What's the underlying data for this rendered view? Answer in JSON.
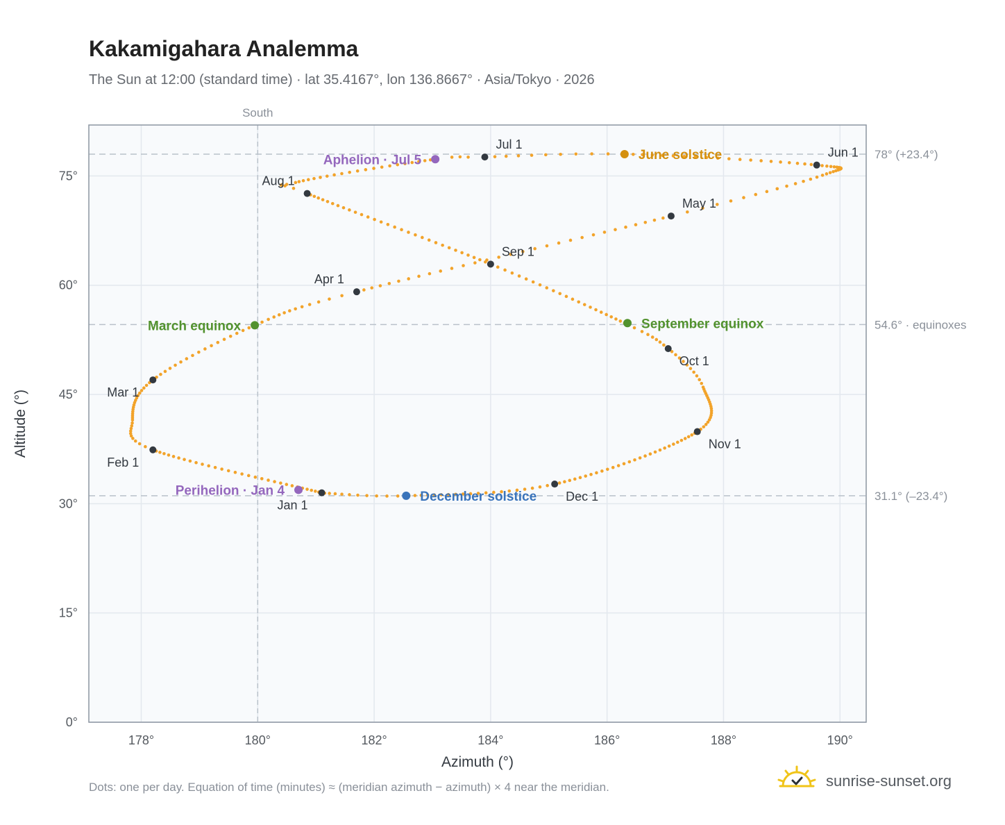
{
  "title": "Kakamigahara Analemma",
  "subtitle": "The Sun at 12:00 (standard time) · lat 35.4167°, lon 136.8667° · Asia/Tokyo · 2026",
  "footnote": "Dots: one per day. Equation of time (minutes) ≈ (meridian azimuth − azimuth) × 4 near the meridian.",
  "brand": {
    "name": "sunrise-sunset.org",
    "icon": "sun-logo-icon"
  },
  "colors": {
    "path": "#f2a32a",
    "month": "#333940",
    "equinox": "#52922e",
    "june_solstice": "#d4900f",
    "december_solstice": "#3a74bb",
    "apsis": "#9467bd",
    "guide": "#b9c1ca",
    "grid": "#e3e8ee",
    "plot_bg": "#f8fafc"
  },
  "chart_data": {
    "type": "scatter",
    "title": "Kakamigahara Analemma",
    "xlabel": "Azimuth (°)",
    "ylabel": "Altitude (°)",
    "xlim": [
      177.1,
      190.45
    ],
    "ylim": [
      0,
      82
    ],
    "x_ticks": [
      178,
      180,
      182,
      184,
      186,
      188,
      190
    ],
    "x_tick_labels": [
      "178°",
      "180°",
      "182°",
      "184°",
      "186°",
      "188°",
      "190°"
    ],
    "y_ticks": [
      0,
      15,
      30,
      45,
      60,
      75
    ],
    "y_tick_labels": [
      "0°",
      "15°",
      "30°",
      "45°",
      "60°",
      "75°"
    ],
    "meridian": {
      "azimuth": 180,
      "label": "South"
    },
    "reference_lines": [
      {
        "altitude": 78.0,
        "label": "78° (+23.4°)"
      },
      {
        "altitude": 54.6,
        "label": "54.6° · equinoxes"
      },
      {
        "altitude": 31.1,
        "label": "31.1° (–23.4°)"
      }
    ],
    "grid": true,
    "daily_points_note": "one dot per day",
    "path_keypoints": [
      {
        "day": 1,
        "az": 181.1,
        "alt": 31.5
      },
      {
        "day": 32,
        "az": 178.2,
        "alt": 37.4
      },
      {
        "day": 43,
        "az": 177.85,
        "alt": 41.5
      },
      {
        "day": 60,
        "az": 178.2,
        "alt": 47.0
      },
      {
        "day": 78,
        "az": 179.95,
        "alt": 54.5
      },
      {
        "day": 91,
        "az": 181.7,
        "alt": 59.1
      },
      {
        "day": 121,
        "az": 187.1,
        "alt": 69.5
      },
      {
        "day": 135,
        "az": 189.7,
        "alt": 75.1
      },
      {
        "day": 152,
        "az": 189.6,
        "alt": 76.5
      },
      {
        "day": 172,
        "az": 186.3,
        "alt": 78.0
      },
      {
        "day": 182,
        "az": 183.9,
        "alt": 77.6
      },
      {
        "day": 186,
        "az": 183.05,
        "alt": 77.3
      },
      {
        "day": 207,
        "az": 180.65,
        "alt": 74.1
      },
      {
        "day": 213,
        "az": 180.85,
        "alt": 72.6
      },
      {
        "day": 244,
        "az": 184.0,
        "alt": 62.9
      },
      {
        "day": 266,
        "az": 186.3,
        "alt": 54.8
      },
      {
        "day": 274,
        "az": 187.05,
        "alt": 51.3
      },
      {
        "day": 285,
        "az": 187.65,
        "alt": 46.0
      },
      {
        "day": 305,
        "az": 187.55,
        "alt": 39.9
      },
      {
        "day": 335,
        "az": 185.1,
        "alt": 32.7
      },
      {
        "day": 355,
        "az": 182.6,
        "alt": 31.1
      },
      {
        "day": 365,
        "az": 181.15,
        "alt": 31.45
      }
    ],
    "month_markers": [
      {
        "label": "Jan 1",
        "az": 181.1,
        "alt": 31.5,
        "pos": "below-left"
      },
      {
        "label": "Feb 1",
        "az": 178.2,
        "alt": 37.4,
        "pos": "below-left"
      },
      {
        "label": "Mar 1",
        "az": 178.2,
        "alt": 47.0,
        "pos": "below-left"
      },
      {
        "label": "Apr 1",
        "az": 181.7,
        "alt": 59.1,
        "pos": "above-left"
      },
      {
        "label": "May 1",
        "az": 187.1,
        "alt": 69.5,
        "pos": "above-right"
      },
      {
        "label": "Jun 1",
        "az": 189.6,
        "alt": 76.5,
        "pos": "above-right"
      },
      {
        "label": "Jul 1",
        "az": 183.9,
        "alt": 77.6,
        "pos": "above-right"
      },
      {
        "label": "Aug 1",
        "az": 180.85,
        "alt": 72.6,
        "pos": "above-left"
      },
      {
        "label": "Sep 1",
        "az": 184.0,
        "alt": 62.9,
        "pos": "above-right"
      },
      {
        "label": "Oct 1",
        "az": 187.05,
        "alt": 51.3,
        "pos": "below-right"
      },
      {
        "label": "Nov 1",
        "az": 187.55,
        "alt": 39.9,
        "pos": "below-right"
      },
      {
        "label": "Dec 1",
        "az": 185.1,
        "alt": 32.7,
        "pos": "below-right"
      }
    ],
    "events": [
      {
        "label": "March equinox",
        "az": 179.95,
        "alt": 54.5,
        "color": "#52922e",
        "pos": "left"
      },
      {
        "label": "September equinox",
        "az": 186.35,
        "alt": 54.8,
        "color": "#52922e",
        "pos": "right"
      },
      {
        "label": "June solstice",
        "az": 186.3,
        "alt": 78.0,
        "color": "#d4900f",
        "pos": "right"
      },
      {
        "label": "December solstice",
        "az": 182.55,
        "alt": 31.1,
        "color": "#3a74bb",
        "pos": "right"
      },
      {
        "label": "Aphelion · Jul 5",
        "az": 183.05,
        "alt": 77.3,
        "color": "#9467bd",
        "pos": "left"
      },
      {
        "label": "Perihelion · Jan 4",
        "az": 180.7,
        "alt": 31.9,
        "color": "#9467bd",
        "pos": "left"
      }
    ]
  }
}
